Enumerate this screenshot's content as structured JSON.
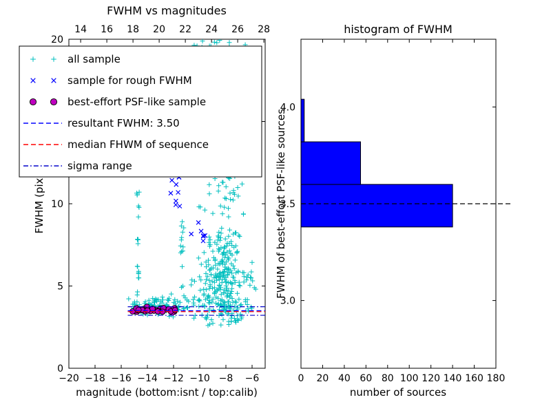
{
  "figure": {
    "background": "#ffffff"
  },
  "chart_data": [
    {
      "type": "scatter",
      "title": "FWHM vs magnitudes",
      "xlabel": "magnitude (bottom:isnt / top:calib)",
      "ylabel": "FWHM (pix)",
      "xlim": [
        -20,
        -5
      ],
      "ylim": [
        0,
        20
      ],
      "xticks": {
        "values": [
          -20,
          -18,
          -16,
          -14,
          -12,
          -10,
          -8,
          -6
        ],
        "labels": [
          "−20",
          "−18",
          "−16",
          "−14",
          "−12",
          "−10",
          "−8",
          "−6"
        ]
      },
      "top_axis": {
        "lim": [
          13.1,
          28.1
        ],
        "values": [
          14,
          16,
          18,
          20,
          22,
          24,
          26,
          28
        ],
        "labels": [
          "14",
          "16",
          "18",
          "20",
          "22",
          "24",
          "26",
          "28"
        ]
      },
      "yticks": {
        "values": [
          0,
          5,
          10,
          15,
          20
        ],
        "labels": [
          "0",
          "5",
          "10",
          "15",
          "20"
        ]
      },
      "seed": 42,
      "series": [
        {
          "name": "all sample",
          "marker": "plus",
          "color": "#00bfbf",
          "clusters": [
            {
              "cx": -8.2,
              "cy": 5.2,
              "sx": 0.85,
              "sy": 1.7,
              "n": 300,
              "xmin": -10.6,
              "xmax": -5.6,
              "ymin": 2.5,
              "ymax": 11
            },
            {
              "cx": -8.1,
              "cy": 13.5,
              "sx": 0.75,
              "sy": 3.2,
              "n": 110,
              "xmin": -10.2,
              "xmax": -6.2,
              "ymin": 9,
              "ymax": 20
            },
            {
              "cx": -9.3,
              "cy": 19.4,
              "sx": 0.85,
              "sy": 0.5,
              "n": 24,
              "ymin": 18,
              "ymax": 20
            },
            {
              "cx": -13.3,
              "cy": 3.8,
              "sx": 1.25,
              "sy": 0.3,
              "n": 85,
              "xmin": -15.6,
              "xmax": -10.9,
              "ymin": 3.1,
              "ymax": 4.9
            },
            {
              "cx": -14.72,
              "cy": 8.6,
              "sx": 0.07,
              "sy": 2.7,
              "n": 22,
              "ymin": 4.0,
              "ymax": 13.6
            },
            {
              "cx": -11.35,
              "cy": 7.2,
              "sx": 0.07,
              "sy": 2.1,
              "n": 15,
              "ymin": 4.2,
              "ymax": 12.2
            },
            {
              "cx": -10.5,
              "cy": 4.4,
              "sx": 0.45,
              "sy": 0.6,
              "n": 14,
              "ymin": 3.2,
              "ymax": 6
            },
            {
              "cx": -6.1,
              "cy": 4.8,
              "sx": 0.35,
              "sy": 1.2,
              "n": 10,
              "xmin": -6.7,
              "xmax": -5.4,
              "ymin": 3,
              "ymax": 7
            }
          ]
        },
        {
          "name": "sample for rough FWHM",
          "marker": "x",
          "color": "#0000ff",
          "clusters": [
            {
              "cx": -11.9,
              "cy": 10.9,
              "sx": 0.22,
              "sy": 0.95,
              "n": 9,
              "ymin": 9.0,
              "ymax": 12.8
            },
            {
              "cx": -9.95,
              "cy": 8.0,
              "sx": 0.3,
              "sy": 0.7,
              "n": 7,
              "ymin": 6.9,
              "ymax": 9.4
            },
            {
              "cx": -8.4,
              "cy": 19.0,
              "sx": 0.2,
              "sy": 0.6,
              "n": 2,
              "ymin": 18.2,
              "ymax": 19.8
            }
          ]
        },
        {
          "name": "best-effort PSF-like sample",
          "marker": "circle",
          "color": "#bf00bf",
          "edge_color": "#000000",
          "clusters": [
            {
              "cx": -13.4,
              "cy": 3.55,
              "sx": 1.15,
              "sy": 0.07,
              "n": 42,
              "xmin": -15.25,
              "xmax": -11.45,
              "ymin": 3.35,
              "ymax": 3.75
            }
          ]
        }
      ],
      "hlines": [
        {
          "name": "sigma-upper",
          "y": 3.74,
          "color": "#0000cc",
          "style": "dashdot",
          "x0": -15.5,
          "x1": -5
        },
        {
          "name": "resultant-fwhm",
          "y": 3.5,
          "color": "#0000ff",
          "style": "dashed",
          "x0": -15.5,
          "x1": -5
        },
        {
          "name": "median-fwhm",
          "y": 3.44,
          "color": "#ff0000",
          "style": "dashed",
          "x0": -15.5,
          "x1": -5
        },
        {
          "name": "sigma-lower",
          "y": 3.22,
          "color": "#0000cc",
          "style": "dashdot",
          "x0": -15.5,
          "x1": -5
        }
      ],
      "legend": [
        {
          "label": "all sample",
          "type": "marker",
          "marker": "plus",
          "color": "#00bfbf"
        },
        {
          "label": "sample for rough FWHM",
          "type": "marker",
          "marker": "x",
          "color": "#0000ff"
        },
        {
          "label": "best-effort PSF-like sample",
          "type": "marker",
          "marker": "circle",
          "color": "#bf00bf"
        },
        {
          "label": "resultant FWHM: 3.50",
          "type": "line",
          "style": "dashed",
          "color": "#0000ff"
        },
        {
          "label": "median FHWM of sequence",
          "type": "line",
          "style": "dashed",
          "color": "#ff0000"
        },
        {
          "label": "sigma range",
          "type": "line",
          "style": "dashdot",
          "color": "#0000cc"
        }
      ]
    },
    {
      "type": "bar-horizontal",
      "title": "histogram of FWHM",
      "xlabel": "number of sources",
      "ylabel": "FWHM of best-effort PSF-like sources",
      "xlim": [
        0,
        180
      ],
      "ylim": [
        2.65,
        4.35
      ],
      "xticks": {
        "values": [
          0,
          20,
          40,
          60,
          80,
          100,
          120,
          140,
          160,
          180
        ],
        "labels": [
          "0",
          "20",
          "40",
          "60",
          "80",
          "100",
          "120",
          "140",
          "160",
          "180"
        ]
      },
      "yticks": {
        "values": [
          3.0,
          3.5,
          4.0
        ],
        "labels": [
          "3.0",
          "3.5",
          "4.0"
        ]
      },
      "bins": {
        "edges": [
          3.38,
          3.6,
          3.82,
          4.04
        ],
        "counts": [
          140,
          55,
          3
        ]
      },
      "bar_color": "#0000ff",
      "bar_edge": "#000000",
      "hline": {
        "y": 3.5,
        "color": "#000000",
        "style": "dashed"
      }
    }
  ]
}
